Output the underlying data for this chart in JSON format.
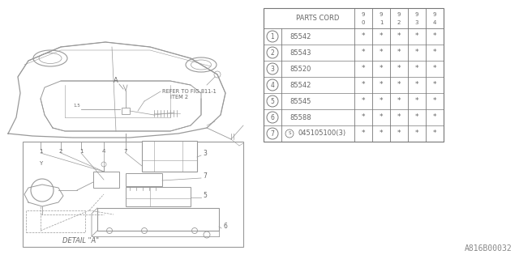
{
  "background_color": "#ffffff",
  "watermark": "A816B00032",
  "table": {
    "header_label": "PARTS CORD",
    "year_cols": [
      "9\n0",
      "9\n1",
      "9\n2",
      "9\n3",
      "9\n4"
    ],
    "rows": [
      {
        "num": "1",
        "part": "85542"
      },
      {
        "num": "2",
        "part": "85543"
      },
      {
        "num": "3",
        "part": "85520"
      },
      {
        "num": "4",
        "part": "85542"
      },
      {
        "num": "5",
        "part": "85545"
      },
      {
        "num": "6",
        "part": "85588"
      },
      {
        "num": "7",
        "part": "S045105100(3)"
      }
    ],
    "cell_value": "*"
  },
  "lc": "#999999",
  "tc": "#666666",
  "fs_table": 6.5,
  "fs_watermark": 7.0
}
